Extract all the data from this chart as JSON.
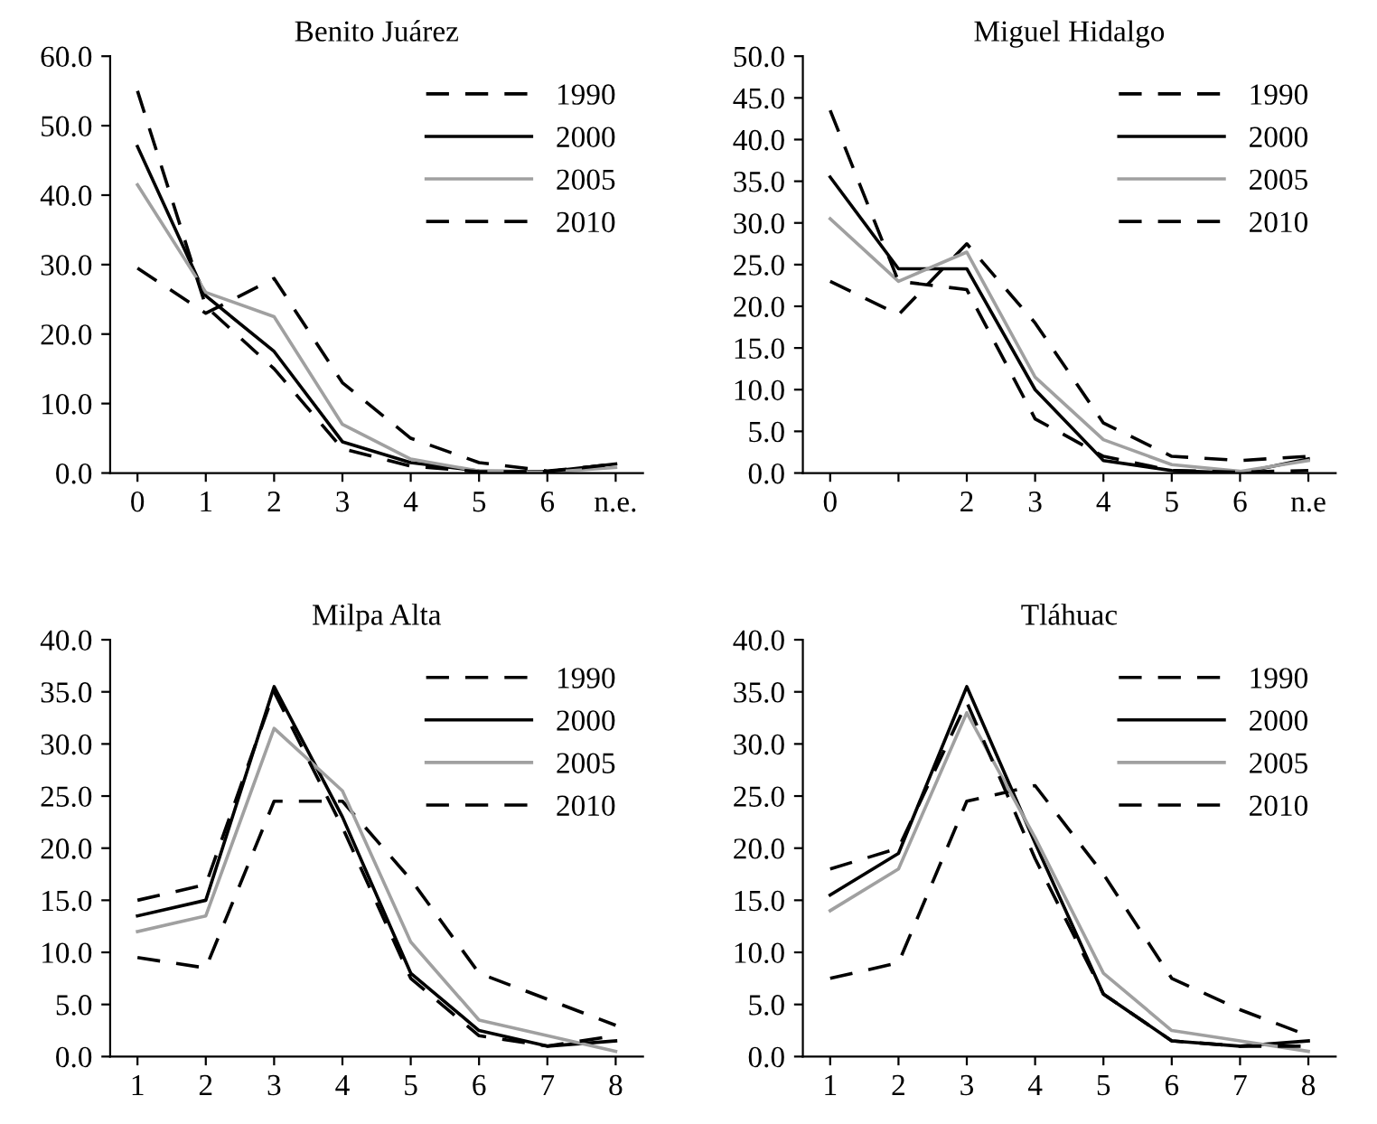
{
  "chart_data": [
    {
      "type": "line",
      "title": "Benito Juárez",
      "categories": [
        "0",
        "1",
        "2",
        "3",
        "4",
        "5",
        "6",
        "n.e."
      ],
      "ylim": [
        0,
        60
      ],
      "yticks": [
        {
          "value": 0,
          "label": "0.0"
        },
        {
          "value": 10,
          "label": "10.0"
        },
        {
          "value": 20,
          "label": "20.0"
        },
        {
          "value": 30,
          "label": "30.0"
        },
        {
          "value": 40,
          "label": "40.0"
        },
        {
          "value": 50,
          "label": "50.0"
        },
        {
          "value": 60,
          "label": "60.0"
        }
      ],
      "grid": false,
      "legend": "top right",
      "marker": "none",
      "series": [
        {
          "name": "1990",
          "color": "#000000",
          "line_style": "dashed",
          "values": [
            29.5,
            23,
            28,
            13,
            5,
            1.5,
            0.3,
            1.2
          ]
        },
        {
          "name": "2000",
          "color": "#000000",
          "line_style": "solid",
          "values": [
            47,
            25.5,
            17.5,
            4.5,
            1.5,
            0.3,
            0.2,
            1.3
          ]
        },
        {
          "name": "2005",
          "color": "#a0a0a0",
          "line_style": "solid",
          "values": [
            41.5,
            26,
            22.5,
            7,
            2,
            0.3,
            0.1,
            0.8
          ]
        },
        {
          "name": "2010",
          "color": "#000000",
          "line_style": "dashed",
          "values": [
            55,
            24,
            15,
            3.5,
            1,
            0.2,
            0.2,
            1.3
          ]
        }
      ]
    },
    {
      "type": "line",
      "title": "Miguel Hidalgo",
      "categories": [
        "0",
        null,
        "2",
        "3",
        "4",
        "5",
        "6",
        "n.e"
      ],
      "ylim": [
        0,
        50
      ],
      "yticks": [
        {
          "value": 0,
          "label": "0.0"
        },
        {
          "value": 5,
          "label": "5.0"
        },
        {
          "value": 10,
          "label": "10.0"
        },
        {
          "value": 15,
          "label": "15.0"
        },
        {
          "value": 20,
          "label": "20.0"
        },
        {
          "value": 25,
          "label": "25.0"
        },
        {
          "value": 30,
          "label": "30.0"
        },
        {
          "value": 35,
          "label": "35.0"
        },
        {
          "value": 40,
          "label": "40.0"
        },
        {
          "value": 45,
          "label": "45.0"
        },
        {
          "value": 50,
          "label": "50.0"
        }
      ],
      "grid": false,
      "legend": "top right",
      "marker": "none",
      "series": [
        {
          "name": "1990",
          "color": "#000000",
          "line_style": "dashed",
          "values": [
            23,
            19,
            27.5,
            18,
            6,
            2,
            1.5,
            2
          ]
        },
        {
          "name": "2000",
          "color": "#000000",
          "line_style": "solid",
          "values": [
            35.5,
            24.5,
            24.5,
            10,
            1.5,
            0.3,
            0,
            1.7
          ]
        },
        {
          "name": "2005",
          "color": "#a0a0a0",
          "line_style": "solid",
          "values": [
            30.5,
            23,
            26.5,
            11.5,
            4,
            1,
            0.2,
            1.5
          ]
        },
        {
          "name": "2010",
          "color": "#000000",
          "line_style": "dashed",
          "values": [
            43.5,
            23,
            22,
            6.5,
            2,
            0.3,
            0.1,
            0.3
          ]
        }
      ]
    },
    {
      "type": "line",
      "title": "Milpa Alta",
      "categories": [
        "1",
        "2",
        "3",
        "4",
        "5",
        "6",
        "7",
        "8"
      ],
      "ylim": [
        0,
        40
      ],
      "yticks": [
        {
          "value": 0,
          "label": "0.0"
        },
        {
          "value": 5,
          "label": "5.0"
        },
        {
          "value": 10,
          "label": "10.0"
        },
        {
          "value": 15,
          "label": "15.0"
        },
        {
          "value": 20,
          "label": "20.0"
        },
        {
          "value": 25,
          "label": "25.0"
        },
        {
          "value": 30,
          "label": "30.0"
        },
        {
          "value": 35,
          "label": "35.0"
        },
        {
          "value": 40,
          "label": "40.0"
        }
      ],
      "grid": false,
      "legend": "top right",
      "marker": "none",
      "series": [
        {
          "name": "1990",
          "color": "#000000",
          "line_style": "dashed",
          "values": [
            9.5,
            8.5,
            24.5,
            24.5,
            17,
            8,
            5.5,
            3
          ]
        },
        {
          "name": "2000",
          "color": "#000000",
          "line_style": "solid",
          "values": [
            13.5,
            15,
            35.5,
            23,
            8,
            2.5,
            1,
            1.5
          ]
        },
        {
          "name": "2005",
          "color": "#a0a0a0",
          "line_style": "solid",
          "values": [
            12,
            13.5,
            31.5,
            25.5,
            11,
            3.5,
            2,
            0.5
          ]
        },
        {
          "name": "2010",
          "color": "#000000",
          "line_style": "dashed",
          "values": [
            15,
            16.5,
            35,
            22,
            7.5,
            2,
            1,
            2
          ]
        }
      ]
    },
    {
      "type": "line",
      "title": "Tláhuac",
      "categories": [
        "1",
        "2",
        "3",
        "4",
        "5",
        "6",
        "7",
        "8"
      ],
      "ylim": [
        0,
        40
      ],
      "yticks": [
        {
          "value": 0,
          "label": "0.0"
        },
        {
          "value": 5,
          "label": "5.0"
        },
        {
          "value": 10,
          "label": "10.0"
        },
        {
          "value": 15,
          "label": "15.0"
        },
        {
          "value": 20,
          "label": "20.0"
        },
        {
          "value": 25,
          "label": "25.0"
        },
        {
          "value": 30,
          "label": "30.0"
        },
        {
          "value": 35,
          "label": "35.0"
        },
        {
          "value": 40,
          "label": "40.0"
        }
      ],
      "grid": false,
      "legend": "top right",
      "marker": "none",
      "series": [
        {
          "name": "1990",
          "color": "#000000",
          "line_style": "dashed",
          "values": [
            7.5,
            9,
            24.5,
            26,
            17.5,
            7.5,
            4.5,
            2
          ]
        },
        {
          "name": "2000",
          "color": "#000000",
          "line_style": "solid",
          "values": [
            15.5,
            19.5,
            35.5,
            20.5,
            6,
            1.5,
            1,
            1.5
          ]
        },
        {
          "name": "2005",
          "color": "#a0a0a0",
          "line_style": "solid",
          "values": [
            14,
            18,
            33,
            21,
            8,
            2.5,
            1.5,
            0.5
          ]
        },
        {
          "name": "2010",
          "color": "#000000",
          "line_style": "dashed",
          "values": [
            18,
            20,
            34,
            19,
            6,
            1.5,
            1,
            1
          ]
        }
      ]
    }
  ]
}
